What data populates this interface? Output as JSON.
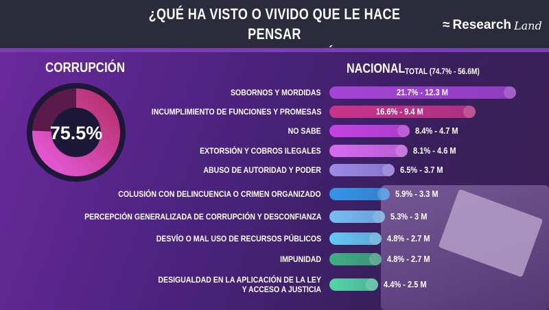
{
  "header": {
    "title_line1": "¿QUÉ HA VISTO O VIVIDO QUE LE HACE PENSAR",
    "title_line2": "QUE HAY CORRUPCIÓN?",
    "logo_main": "Research",
    "logo_script": "Land"
  },
  "donut": {
    "label": "CORRUPCIÓN",
    "value_text": "75.5%",
    "value": 75.5
  },
  "chart_data": {
    "type": "bar",
    "title": "¿Qué ha visto o vivido que le hace pensar que hay corrupción?",
    "subtitle": "NACIONAL",
    "total_label": "TOTAL (74.7% - 56.6M)",
    "categories": [
      "SOBORNOS Y MORDIDAS",
      "INCUMPLIMIENTO DE FUNCIONES Y PROMESAS",
      "NO SABE",
      "EXTORSIÓN Y COBROS ILEGALES",
      "ABUSO DE AUTORIDAD Y PODER",
      "COLUSIÓN CON DELINCUENCIA O CRIMEN ORGANIZADO",
      "PERCEPCIÓN GENERALIZADA DE CORRUPCIÓN Y DESCONFIANZA",
      "DESVÍO O MAL USO DE RECURSOS PÚBLICOS",
      "IMPUNIDAD",
      "DESIGUALDAD EN LA APLICACIÓN DE LA LEY|Y ACCESO A JUSTICIA"
    ],
    "values": [
      21.7,
      16.6,
      8.4,
      8.1,
      6.5,
      5.9,
      5.3,
      4.8,
      4.8,
      4.4
    ],
    "labels": [
      "21.7% - 12.3 M",
      "16.6% - 9.4 M",
      "8.4% - 4.7 M",
      "8.1% - 4.6 M",
      "6.5% - 3.7 M",
      "5.9% - 3.3 M",
      "5.3% - 3 M",
      "4.8% - 2.7 M",
      "4.8% - 2.7 M",
      "4.4% - 2.5 M"
    ],
    "colors": [
      "#a444d6",
      "#c8348a",
      "#c444e4",
      "#d66cf0",
      "#9a8ae6",
      "#3496e6",
      "#76bef2",
      "#66c8f2",
      "#3fae82",
      "#52d6a6"
    ],
    "xlabel": "",
    "ylabel": ""
  }
}
